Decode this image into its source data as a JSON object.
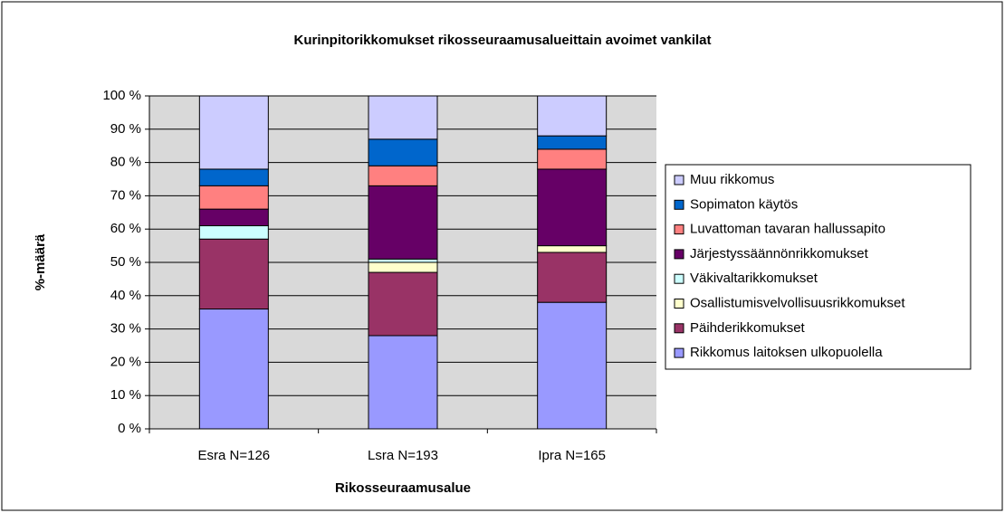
{
  "chart_data": {
    "type": "stacked_bar",
    "title": "Kurinpitorikkomukset rikosseuraamusalueittain avoimet vankilat",
    "xlabel": "Rikosseuraamusalue",
    "ylabel": "%-määrä",
    "categories": [
      "Esra N=126",
      "Lsra N=193",
      "Ipra N=165"
    ],
    "ylim": [
      0,
      100
    ],
    "yticks": [
      {
        "value": 0,
        "label": "0 %"
      },
      {
        "value": 10,
        "label": "10 %"
      },
      {
        "value": 20,
        "label": "20 %"
      },
      {
        "value": 30,
        "label": "30 %"
      },
      {
        "value": 40,
        "label": "40 %"
      },
      {
        "value": 50,
        "label": "50 %"
      },
      {
        "value": 60,
        "label": "60 %"
      },
      {
        "value": 70,
        "label": "70 %"
      },
      {
        "value": 80,
        "label": "80 %"
      },
      {
        "value": 90,
        "label": "90 %"
      },
      {
        "value": 100,
        "label": "100 %"
      }
    ],
    "grid": true,
    "legend": "right",
    "series": [
      {
        "name": "Rikkomus laitoksen ulkopuolella",
        "color": "#9999ff",
        "values": [
          36,
          28,
          38
        ]
      },
      {
        "name": "Päihderikkomukset",
        "color": "#993366",
        "values": [
          21,
          19,
          15
        ]
      },
      {
        "name": "Osallistumisvelvollisuusrikkomukset",
        "color": "#ffffcc",
        "values": [
          0,
          3,
          2
        ]
      },
      {
        "name": "Väkivaltarikkomukset",
        "color": "#ccffff",
        "values": [
          4,
          1,
          0
        ]
      },
      {
        "name": "Järjestyssäännönrikkomukset",
        "color": "#660066",
        "values": [
          5,
          22,
          23
        ]
      },
      {
        "name": "Luvattoman tavaran hallussapito",
        "color": "#ff8080",
        "values": [
          7,
          6,
          6
        ]
      },
      {
        "name": "Sopimaton käytös",
        "color": "#0066cc",
        "values": [
          5,
          8,
          4
        ]
      },
      {
        "name": "Muu rikkomus",
        "color": "#ccccff",
        "values": [
          22,
          13,
          12
        ]
      }
    ]
  }
}
